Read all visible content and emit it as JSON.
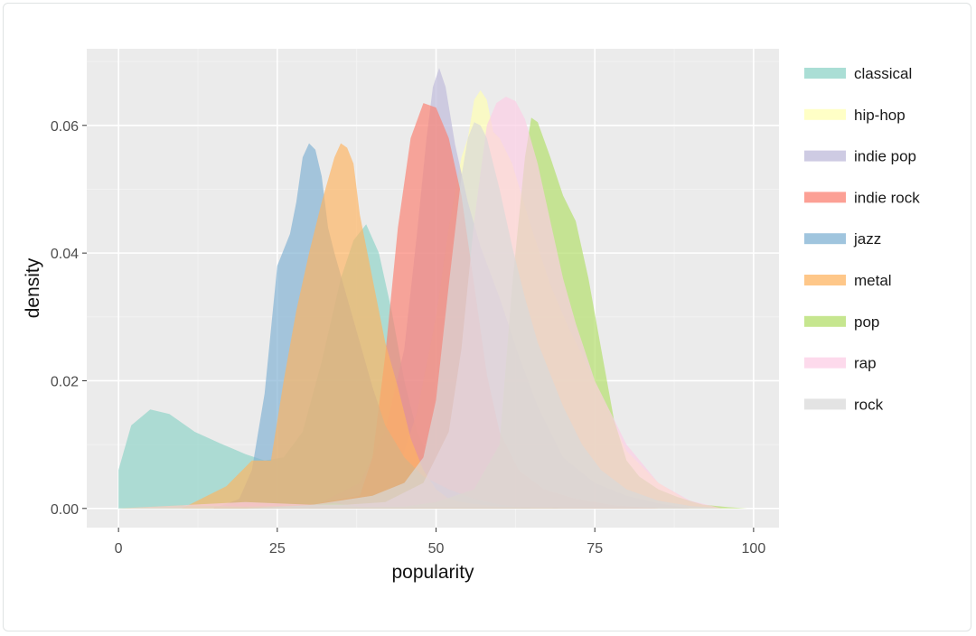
{
  "chart_data": {
    "type": "area",
    "title": "",
    "xlabel": "popularity",
    "ylabel": "density",
    "xlim": [
      -5,
      104
    ],
    "ylim": [
      -0.003,
      0.072
    ],
    "x_ticks": [
      0,
      25,
      50,
      75,
      100
    ],
    "x_tick_labels": [
      "0",
      "25",
      "50",
      "75",
      "100"
    ],
    "y_ticks": [
      0.0,
      0.02,
      0.04,
      0.06
    ],
    "y_tick_labels": [
      "0.00",
      "0.02",
      "0.04",
      "0.06"
    ],
    "grid": true,
    "legend_position": "right",
    "series": [
      {
        "name": "classical",
        "color": "#8dd3c7",
        "x": [
          0,
          2,
          5,
          8,
          12,
          16,
          20,
          23,
          26,
          29,
          32,
          35,
          37,
          39,
          41,
          43,
          45,
          47,
          50,
          55,
          60,
          65,
          70
        ],
        "y": [
          0.006,
          0.013,
          0.0155,
          0.0148,
          0.012,
          0.0102,
          0.0085,
          0.0075,
          0.008,
          0.012,
          0.023,
          0.036,
          0.042,
          0.0445,
          0.04,
          0.031,
          0.02,
          0.012,
          0.006,
          0.0025,
          0.001,
          0.0004,
          0.0
        ]
      },
      {
        "name": "hip-hop",
        "color": "#ffffb3",
        "x": [
          35,
          40,
          44,
          47,
          50,
          52,
          54,
          55,
          56,
          57,
          58,
          59,
          60,
          62,
          65,
          68,
          71,
          75,
          80,
          85,
          90,
          95
        ],
        "y": [
          0.0,
          0.002,
          0.006,
          0.015,
          0.03,
          0.044,
          0.055,
          0.058,
          0.064,
          0.0655,
          0.064,
          0.059,
          0.058,
          0.054,
          0.044,
          0.035,
          0.028,
          0.02,
          0.009,
          0.004,
          0.001,
          0.0
        ]
      },
      {
        "name": "indie pop",
        "color": "#bebada",
        "x": [
          30,
          38,
          42,
          45,
          47,
          48.5,
          49.5,
          50.5,
          51.5,
          53,
          55,
          57,
          60,
          63,
          66,
          70,
          75,
          80,
          85,
          90
        ],
        "y": [
          0.0,
          0.004,
          0.012,
          0.025,
          0.043,
          0.058,
          0.066,
          0.069,
          0.066,
          0.057,
          0.048,
          0.041,
          0.033,
          0.024,
          0.016,
          0.008,
          0.004,
          0.002,
          0.0008,
          0.0
        ]
      },
      {
        "name": "indie rock",
        "color": "#fb8072",
        "x": [
          15,
          20,
          30,
          38,
          40,
          42,
          44,
          46,
          48,
          50,
          52,
          54,
          56,
          58,
          60,
          63,
          67,
          72,
          78,
          85
        ],
        "y": [
          0.0003,
          0.0008,
          0.0005,
          0.002,
          0.008,
          0.024,
          0.044,
          0.058,
          0.0635,
          0.0628,
          0.058,
          0.049,
          0.035,
          0.021,
          0.012,
          0.006,
          0.003,
          0.0015,
          0.0005,
          0.0
        ]
      },
      {
        "name": "jazz",
        "color": "#80b1d3",
        "x": [
          15,
          19,
          21,
          23,
          25,
          27,
          28,
          29,
          30,
          31,
          32,
          33,
          34,
          36,
          38,
          40,
          42,
          45,
          48,
          52,
          56,
          60,
          65
        ],
        "y": [
          0.0,
          0.0015,
          0.006,
          0.018,
          0.038,
          0.043,
          0.048,
          0.055,
          0.0572,
          0.0562,
          0.052,
          0.044,
          0.04,
          0.033,
          0.026,
          0.019,
          0.013,
          0.008,
          0.005,
          0.003,
          0.0015,
          0.0006,
          0.0
        ]
      },
      {
        "name": "metal",
        "color": "#fdb462",
        "x": [
          10,
          17,
          21,
          24,
          26,
          28,
          30,
          32,
          34,
          35,
          36,
          37,
          38,
          40,
          42,
          44,
          46,
          48,
          50,
          52,
          55,
          60,
          70
        ],
        "y": [
          0.0,
          0.0035,
          0.0075,
          0.0075,
          0.02,
          0.031,
          0.04,
          0.048,
          0.055,
          0.0572,
          0.0565,
          0.054,
          0.046,
          0.036,
          0.026,
          0.019,
          0.011,
          0.006,
          0.003,
          0.0015,
          0.0008,
          0.0003,
          0.0
        ]
      },
      {
        "name": "pop",
        "color": "#b3de69",
        "x": [
          0,
          10,
          20,
          30,
          34,
          38,
          45,
          50,
          56,
          60,
          62,
          64,
          65,
          66,
          68,
          70,
          72,
          74,
          76,
          78,
          80,
          82,
          85,
          88,
          92,
          96,
          99
        ],
        "y": [
          0.0,
          0.0005,
          0.0003,
          0.0005,
          0.0008,
          0.0003,
          0.0003,
          0.001,
          0.003,
          0.01,
          0.035,
          0.055,
          0.0612,
          0.0605,
          0.055,
          0.049,
          0.045,
          0.036,
          0.025,
          0.014,
          0.0075,
          0.005,
          0.003,
          0.0018,
          0.0006,
          0.0002,
          0.0
        ]
      },
      {
        "name": "rap",
        "color": "#fccde5",
        "x": [
          0,
          10,
          20,
          30,
          36,
          42,
          48,
          52,
          54,
          56,
          58,
          59.5,
          61,
          62.5,
          64,
          66,
          68,
          70,
          72,
          75,
          80,
          85,
          90,
          95
        ],
        "y": [
          0.0,
          0.0005,
          0.001,
          0.0006,
          0.0006,
          0.001,
          0.004,
          0.012,
          0.025,
          0.045,
          0.06,
          0.0635,
          0.0645,
          0.0638,
          0.061,
          0.054,
          0.045,
          0.036,
          0.029,
          0.02,
          0.01,
          0.004,
          0.0012,
          0.0
        ]
      },
      {
        "name": "rock",
        "color": "#d9d9d9",
        "x": [
          20,
          30,
          40,
          45,
          48,
          50,
          52,
          54,
          55,
          56,
          57,
          58,
          60,
          62,
          64,
          66,
          68,
          70,
          73,
          76,
          80,
          85,
          90,
          95
        ],
        "y": [
          0.0,
          0.0005,
          0.002,
          0.004,
          0.008,
          0.017,
          0.035,
          0.052,
          0.058,
          0.0605,
          0.06,
          0.058,
          0.05,
          0.041,
          0.033,
          0.026,
          0.021,
          0.016,
          0.01,
          0.006,
          0.003,
          0.0012,
          0.0004,
          0.0
        ]
      }
    ]
  }
}
